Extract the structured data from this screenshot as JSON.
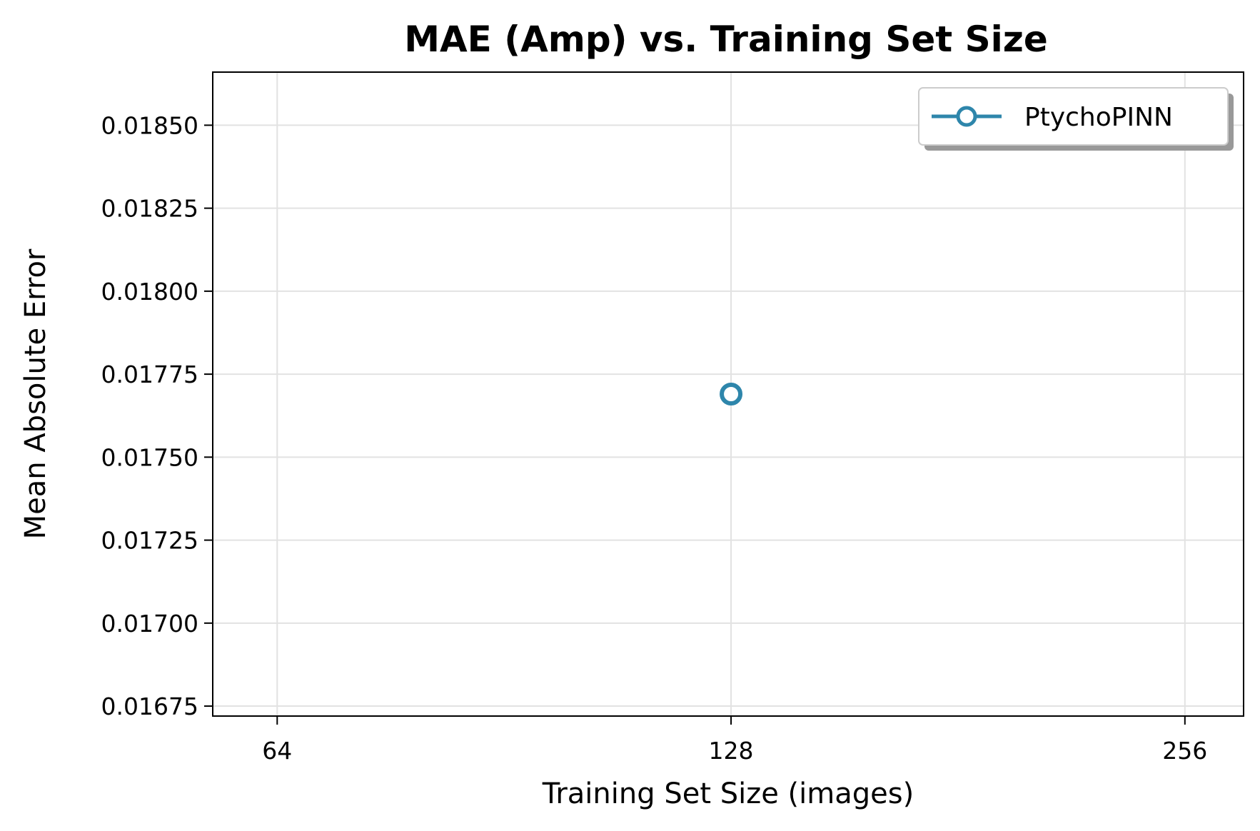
{
  "chart_data": {
    "type": "line",
    "title": "MAE (Amp) vs. Training Set Size",
    "xlabel": "Training Set Size (images)",
    "ylabel": "Mean Absolute Error",
    "x_scale": "log2",
    "xlim": [
      58,
      280
    ],
    "ylim": [
      0.01672,
      0.01866
    ],
    "x_ticks": [
      64,
      128,
      256
    ],
    "x_tick_labels": [
      "64",
      "128",
      "256"
    ],
    "y_ticks": [
      0.01675,
      0.017,
      0.01725,
      0.0175,
      0.01775,
      0.018,
      0.01825,
      0.0185
    ],
    "y_tick_labels": [
      "0.01675",
      "0.01700",
      "0.01725",
      "0.01750",
      "0.01775",
      "0.01800",
      "0.01825",
      "0.01850"
    ],
    "grid": true,
    "legend_position": "top-right",
    "series": [
      {
        "name": "PtychoPINN",
        "color": "#2e86ab",
        "marker": "open-circle",
        "points": [
          {
            "x": 128,
            "y": 0.01769
          }
        ]
      }
    ]
  }
}
